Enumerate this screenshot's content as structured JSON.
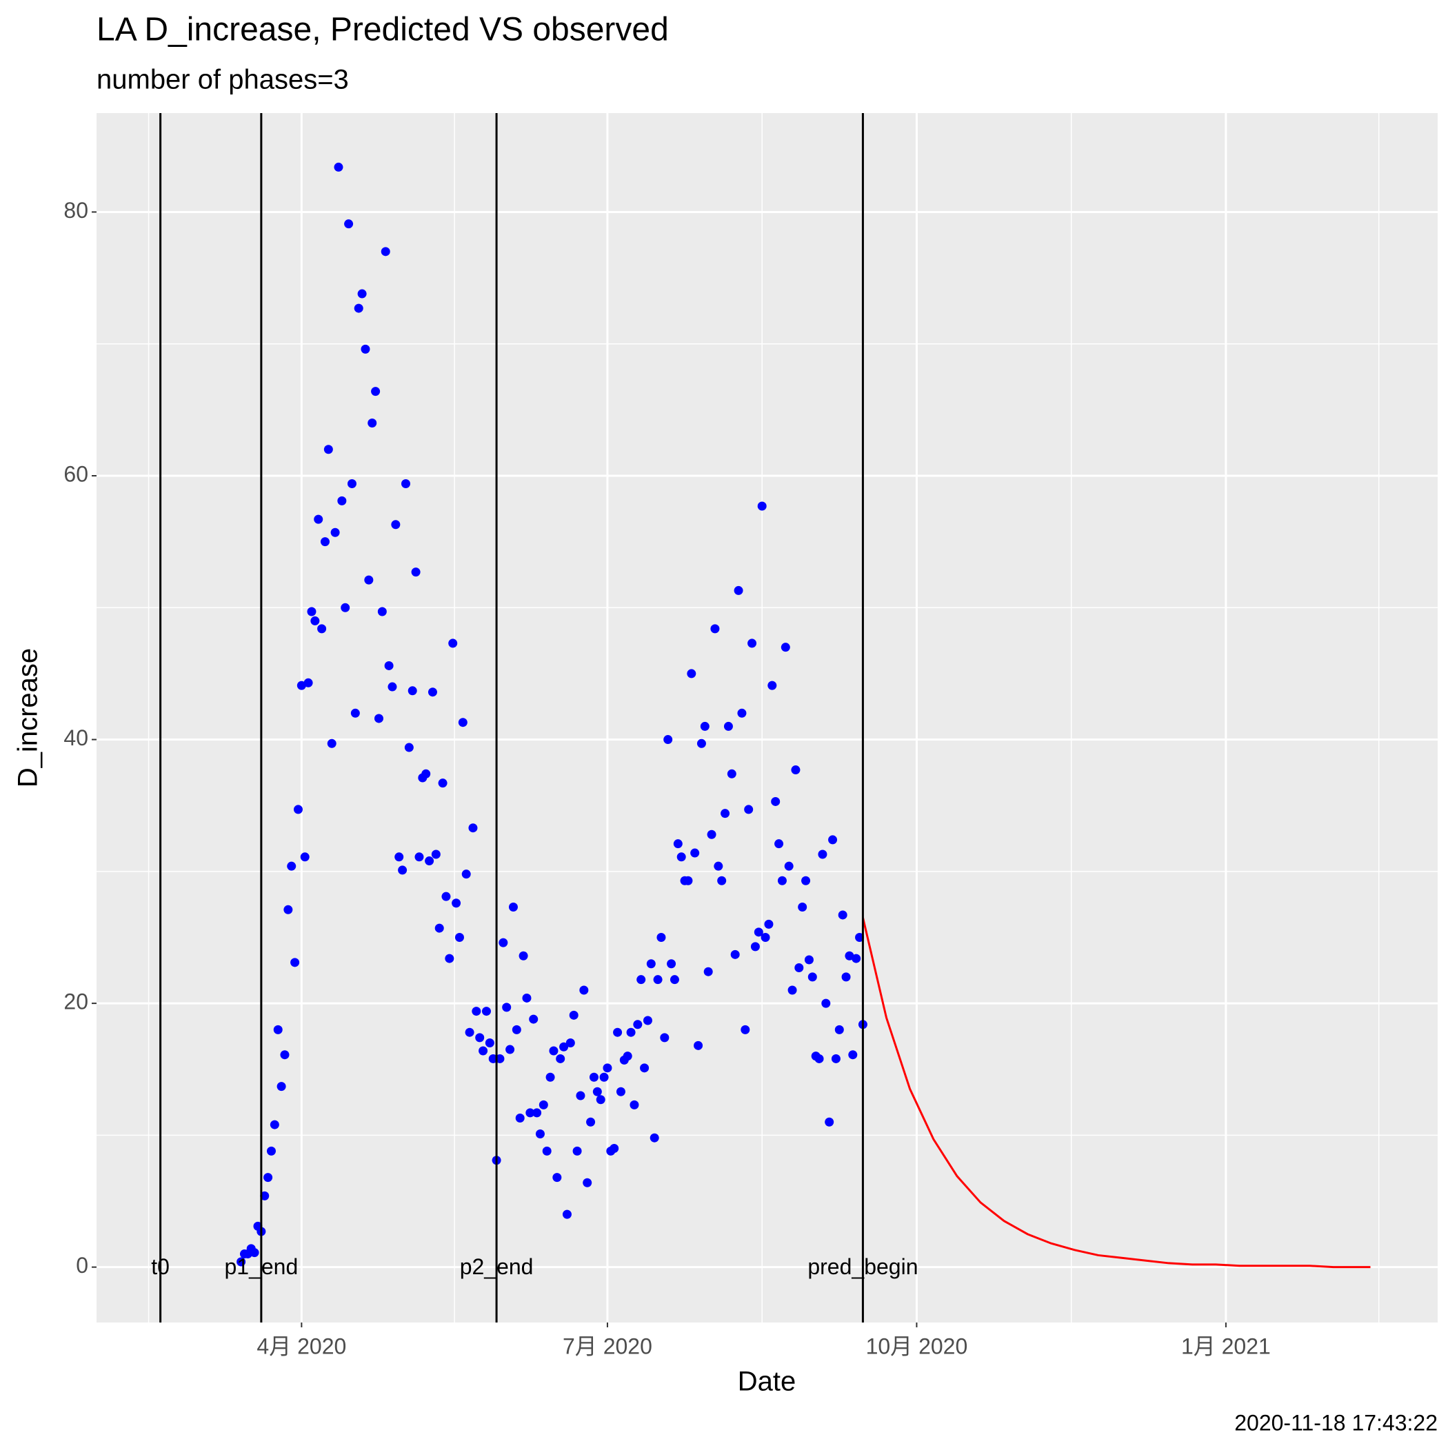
{
  "chart_data": {
    "type": "scatter",
    "title": "LA D_increase, Predicted VS observed",
    "subtitle": "number of phases=3",
    "x_label": "Date",
    "y_label": "D_increase",
    "caption": "2020-11-18 17:43:22",
    "xlim": [
      "2020-01-31",
      "2021-03-05"
    ],
    "xticks": [
      {
        "value": "2020-04-01",
        "label": "4月 2020"
      },
      {
        "value": "2020-07-01",
        "label": "7月 2020"
      },
      {
        "value": "2020-10-01",
        "label": "10月 2020"
      },
      {
        "value": "2021-01-01",
        "label": "1月 2021"
      }
    ],
    "ylim": [
      -4.2,
      87.5
    ],
    "yticks": [
      0,
      20,
      40,
      60,
      80
    ],
    "grid": true,
    "vlines": [
      {
        "x": "2020-02-19",
        "label": "t0"
      },
      {
        "x": "2020-03-20",
        "label": "p1_end"
      },
      {
        "x": "2020-05-29",
        "label": "p2_end"
      },
      {
        "x": "2020-09-15",
        "label": "pred_begin"
      }
    ],
    "series": [
      {
        "type": "scatter",
        "color": "#0000ff",
        "x": [
          "2020-03-14",
          "2020-03-15",
          "2020-03-16",
          "2020-03-17",
          "2020-03-18",
          "2020-03-19",
          "2020-03-20",
          "2020-03-21",
          "2020-03-22",
          "2020-03-23",
          "2020-03-24",
          "2020-03-25",
          "2020-03-26",
          "2020-03-27",
          "2020-03-28",
          "2020-03-29",
          "2020-03-30",
          "2020-03-31",
          "2020-04-01",
          "2020-04-02",
          "2020-04-03",
          "2020-04-04",
          "2020-04-05",
          "2020-04-06",
          "2020-04-07",
          "2020-04-08",
          "2020-04-09",
          "2020-04-10",
          "2020-04-11",
          "2020-04-12",
          "2020-04-13",
          "2020-04-14",
          "2020-04-15",
          "2020-04-16",
          "2020-04-17",
          "2020-04-18",
          "2020-04-19",
          "2020-04-20",
          "2020-04-21",
          "2020-04-22",
          "2020-04-23",
          "2020-04-24",
          "2020-04-25",
          "2020-04-26",
          "2020-04-27",
          "2020-04-28",
          "2020-04-29",
          "2020-04-30",
          "2020-05-01",
          "2020-05-02",
          "2020-05-03",
          "2020-05-04",
          "2020-05-05",
          "2020-05-06",
          "2020-05-07",
          "2020-05-08",
          "2020-05-09",
          "2020-05-10",
          "2020-05-11",
          "2020-05-12",
          "2020-05-13",
          "2020-05-14",
          "2020-05-15",
          "2020-05-16",
          "2020-05-17",
          "2020-05-18",
          "2020-05-19",
          "2020-05-20",
          "2020-05-21",
          "2020-05-22",
          "2020-05-23",
          "2020-05-24",
          "2020-05-25",
          "2020-05-26",
          "2020-05-27",
          "2020-05-28",
          "2020-05-29",
          "2020-05-30",
          "2020-05-31",
          "2020-06-01",
          "2020-06-02",
          "2020-06-03",
          "2020-06-04",
          "2020-06-05",
          "2020-06-06",
          "2020-06-07",
          "2020-06-08",
          "2020-06-09",
          "2020-06-10",
          "2020-06-11",
          "2020-06-12",
          "2020-06-13",
          "2020-06-14",
          "2020-06-15",
          "2020-06-16",
          "2020-06-17",
          "2020-06-18",
          "2020-06-19",
          "2020-06-20",
          "2020-06-21",
          "2020-06-22",
          "2020-06-23",
          "2020-06-24",
          "2020-06-25",
          "2020-06-26",
          "2020-06-27",
          "2020-06-28",
          "2020-06-29",
          "2020-06-30",
          "2020-07-01",
          "2020-07-02",
          "2020-07-03",
          "2020-07-04",
          "2020-07-05",
          "2020-07-06",
          "2020-07-07",
          "2020-07-08",
          "2020-07-09",
          "2020-07-10",
          "2020-07-11",
          "2020-07-12",
          "2020-07-13",
          "2020-07-14",
          "2020-07-15",
          "2020-07-16",
          "2020-07-17",
          "2020-07-18",
          "2020-07-19",
          "2020-07-20",
          "2020-07-21",
          "2020-07-22",
          "2020-07-23",
          "2020-07-24",
          "2020-07-25",
          "2020-07-26",
          "2020-07-27",
          "2020-07-28",
          "2020-07-29",
          "2020-07-30",
          "2020-07-31",
          "2020-08-01",
          "2020-08-02",
          "2020-08-03",
          "2020-08-04",
          "2020-08-05",
          "2020-08-06",
          "2020-08-07",
          "2020-08-08",
          "2020-08-09",
          "2020-08-10",
          "2020-08-11",
          "2020-08-12",
          "2020-08-13",
          "2020-08-14",
          "2020-08-15",
          "2020-08-16",
          "2020-08-17",
          "2020-08-18",
          "2020-08-19",
          "2020-08-20",
          "2020-08-21",
          "2020-08-22",
          "2020-08-23",
          "2020-08-24",
          "2020-08-25",
          "2020-08-26",
          "2020-08-27",
          "2020-08-28",
          "2020-08-29",
          "2020-08-30",
          "2020-08-31",
          "2020-09-01",
          "2020-09-02",
          "2020-09-03",
          "2020-09-04",
          "2020-09-05",
          "2020-09-06",
          "2020-09-07",
          "2020-09-08",
          "2020-09-09",
          "2020-09-10",
          "2020-09-11",
          "2020-09-12",
          "2020-09-13",
          "2020-09-14",
          "2020-09-15"
        ],
        "values": [
          0.4,
          1.0,
          1.0,
          1.4,
          1.1,
          3.1,
          2.7,
          5.4,
          6.8,
          8.8,
          10.8,
          18.0,
          13.7,
          16.1,
          27.1,
          30.4,
          23.1,
          34.7,
          44.1,
          31.1,
          44.3,
          49.7,
          49.0,
          56.7,
          48.4,
          55.0,
          62.0,
          39.7,
          55.7,
          83.4,
          58.1,
          50.0,
          79.1,
          59.4,
          42.0,
          72.7,
          73.8,
          69.6,
          52.1,
          64.0,
          66.4,
          41.6,
          49.7,
          77.0,
          45.6,
          44.0,
          56.3,
          31.1,
          30.1,
          59.4,
          39.4,
          43.7,
          52.7,
          31.1,
          37.1,
          37.4,
          30.8,
          43.6,
          31.3,
          25.7,
          36.7,
          28.1,
          23.4,
          47.3,
          27.6,
          25.0,
          41.3,
          29.8,
          17.8,
          33.3,
          19.4,
          17.4,
          16.4,
          19.4,
          17.0,
          15.8,
          8.1,
          15.8,
          24.6,
          19.7,
          16.5,
          27.3,
          18.0,
          11.3,
          23.6,
          20.4,
          11.7,
          18.8,
          11.7,
          10.1,
          12.3,
          8.8,
          14.4,
          16.4,
          6.8,
          15.8,
          16.7,
          4.0,
          17.0,
          19.1,
          8.8,
          13.0,
          21.0,
          6.4,
          11.0,
          14.4,
          13.3,
          12.7,
          14.4,
          15.1,
          8.8,
          9.0,
          17.8,
          13.3,
          15.7,
          16.0,
          17.8,
          12.3,
          18.4,
          21.8,
          15.1,
          18.7,
          23.0,
          9.8,
          21.8,
          25.0,
          17.4,
          40.0,
          23.0,
          21.8,
          32.1,
          31.1,
          29.3,
          29.3,
          45.0,
          31.4,
          16.8,
          39.7,
          41.0,
          22.4,
          32.8,
          48.4,
          30.4,
          29.3,
          34.4,
          41.0,
          37.4,
          23.7,
          51.3,
          42.0,
          18.0,
          34.7,
          47.3,
          24.3,
          25.4,
          57.7,
          25.0,
          26.0,
          44.1,
          35.3,
          32.1,
          29.3,
          47.0,
          30.4,
          21.0,
          37.7,
          22.7,
          27.3,
          29.3,
          23.3,
          22.0,
          16.0,
          15.8,
          31.3,
          20.0,
          11.0,
          32.4,
          15.8,
          18.0,
          26.7,
          22.0,
          23.6,
          16.1,
          23.4,
          25.0,
          18.4
        ]
      },
      {
        "type": "line",
        "color": "#ff0000",
        "x": [
          "2020-09-15",
          "2020-09-22",
          "2020-09-29",
          "2020-10-06",
          "2020-10-13",
          "2020-10-20",
          "2020-10-27",
          "2020-11-03",
          "2020-11-10",
          "2020-11-17",
          "2020-11-24",
          "2020-12-01",
          "2020-12-08",
          "2020-12-15",
          "2020-12-22",
          "2020-12-29",
          "2021-01-05",
          "2021-01-12",
          "2021-01-19",
          "2021-01-26",
          "2021-02-02",
          "2021-02-09",
          "2021-02-13"
        ],
        "values": [
          26.5,
          18.9,
          13.5,
          9.7,
          6.9,
          4.9,
          3.5,
          2.5,
          1.8,
          1.3,
          0.9,
          0.7,
          0.5,
          0.3,
          0.2,
          0.2,
          0.1,
          0.1,
          0.1,
          0.1,
          0,
          0,
          0
        ]
      }
    ]
  }
}
